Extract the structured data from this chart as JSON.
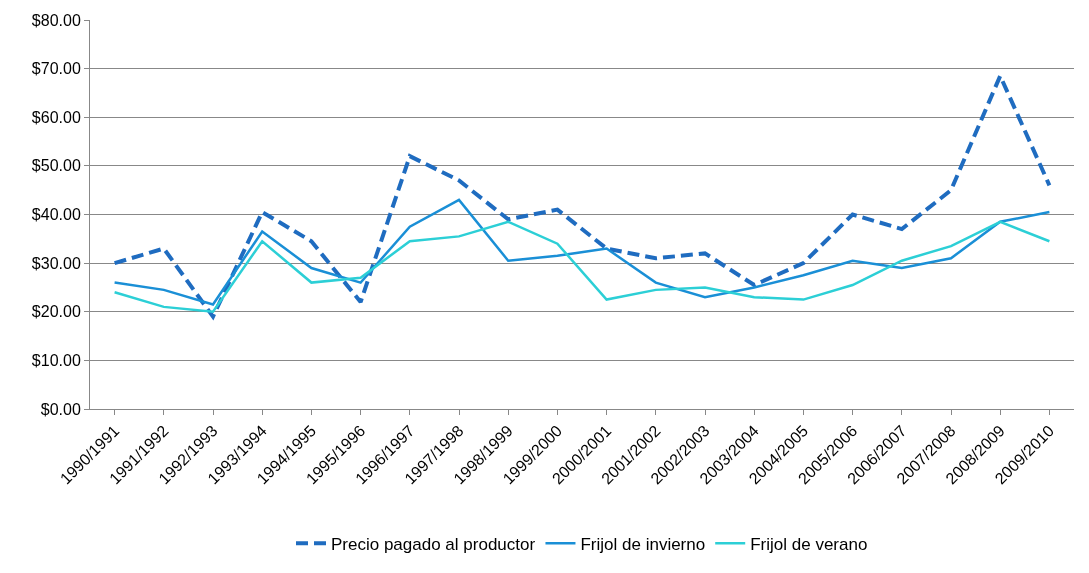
{
  "chart_data": {
    "type": "line",
    "categories": [
      "1990/1991",
      "1991/1992",
      "1992/1993",
      "1993/1994",
      "1994/1995",
      "1995/1996",
      "1996/1997",
      "1997/1998",
      "1998/1999",
      "1999/2000",
      "2000/2001",
      "2001/2002",
      "2002/2003",
      "2003/2004",
      "2004/2005",
      "2005/2006",
      "2006/2007",
      "2007/2008",
      "2008/2009",
      "2009/2010"
    ],
    "series": [
      {
        "name": "Precio pagado al productor",
        "color": "#1f6cc0",
        "line_style": "dashed",
        "values": [
          30,
          33,
          19,
          40.5,
          34.5,
          22,
          52,
          47,
          39,
          41,
          33,
          31,
          32,
          25.5,
          30,
          40,
          37,
          45,
          68.5,
          46
        ]
      },
      {
        "name": "Frijol de invierno",
        "color": "#1a8fd6",
        "line_style": "solid",
        "values": [
          26,
          24.5,
          21.5,
          36.5,
          29,
          26,
          37.5,
          43,
          30.5,
          31.5,
          33,
          26,
          23,
          25,
          27.5,
          30.5,
          29,
          31,
          38.5,
          40.5
        ]
      },
      {
        "name": "Frijol de verano",
        "color": "#2ccfd6",
        "line_style": "solid",
        "values": [
          24,
          21,
          20,
          34.5,
          26,
          27,
          34.5,
          35.5,
          38.5,
          34,
          22.5,
          24.5,
          25,
          23,
          22.5,
          25.5,
          30.5,
          33.5,
          38.5,
          34.5
        ]
      }
    ],
    "ylim": [
      0,
      80
    ],
    "yticks": [
      {
        "value": 0,
        "label": "$0.00"
      },
      {
        "value": 10,
        "label": "$10.00"
      },
      {
        "value": 20,
        "label": "$20.00"
      },
      {
        "value": 30,
        "label": "$30.00"
      },
      {
        "value": 40,
        "label": "$40.00"
      },
      {
        "value": 50,
        "label": "$50.00"
      },
      {
        "value": 60,
        "label": "$60.00"
      },
      {
        "value": 70,
        "label": "$70.00"
      },
      {
        "value": 80,
        "label": "$80.00"
      }
    ],
    "grid": "y",
    "legend": "bottom",
    "marker": "none"
  }
}
